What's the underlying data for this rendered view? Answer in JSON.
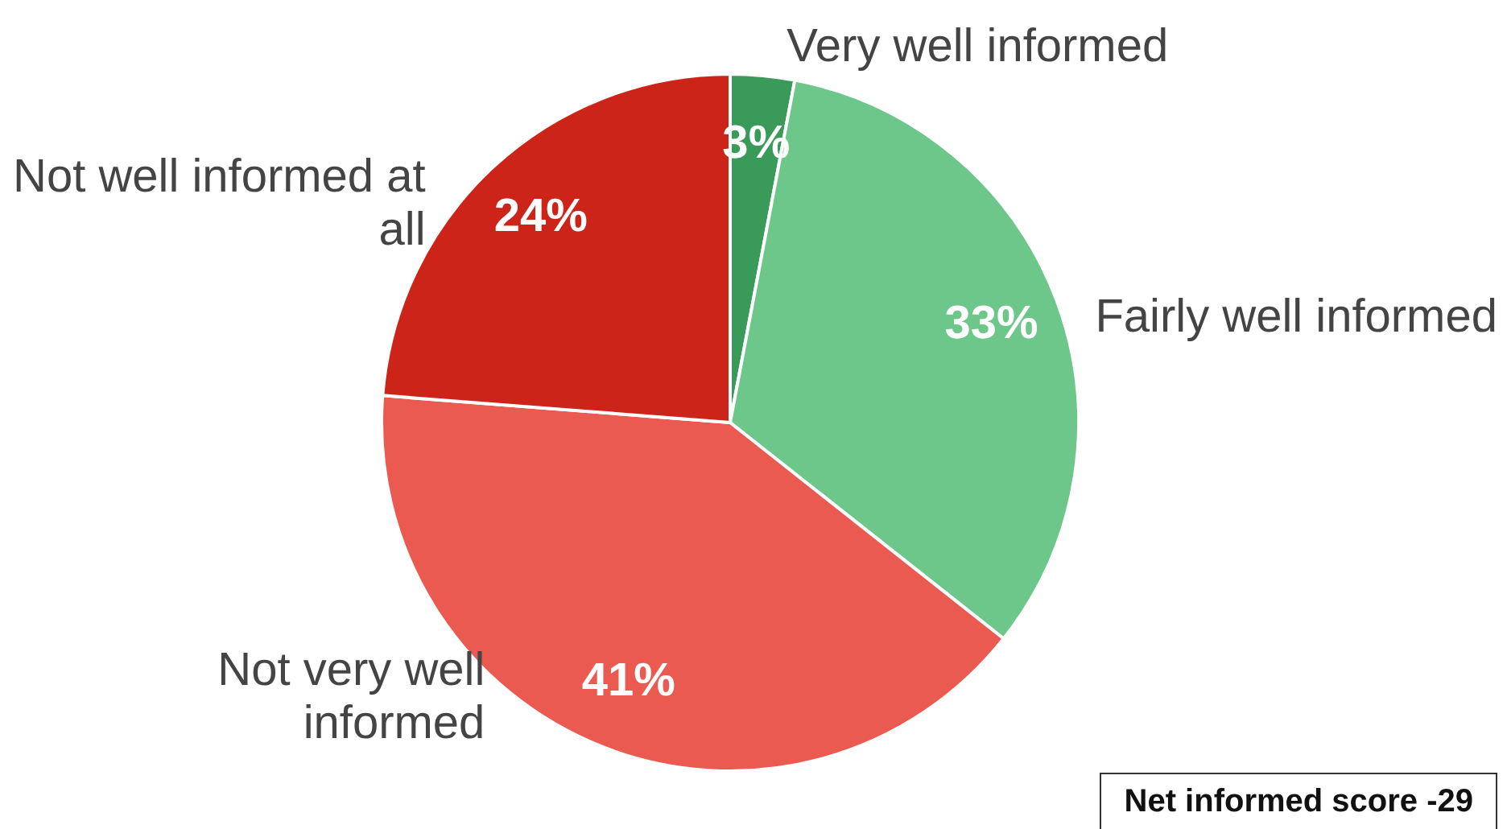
{
  "chart_data": {
    "type": "pie",
    "categories": [
      "Very well informed",
      "Fairly well informed",
      "Not very well informed",
      "Not well informed at all"
    ],
    "values": [
      3,
      33,
      41,
      24
    ],
    "colors": [
      "#3a9a5a",
      "#6dc68a",
      "#eb5a50",
      "#cc2418"
    ],
    "value_labels": [
      "3%",
      "33%",
      "41%",
      "24%"
    ],
    "legend": false,
    "annotations": [
      "Net informed score -29"
    ]
  }
}
